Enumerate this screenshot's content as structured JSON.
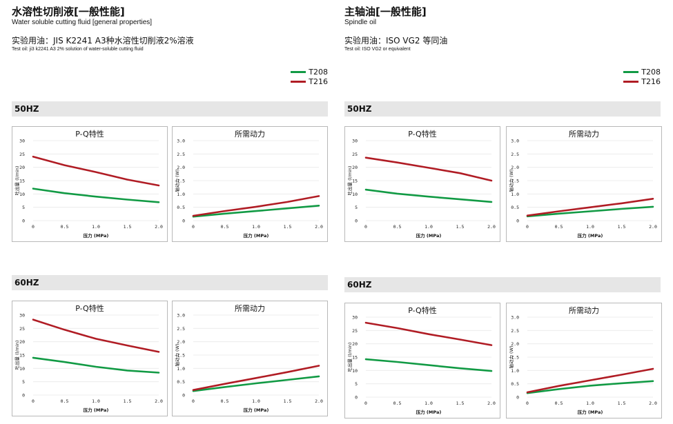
{
  "left": {
    "title": "水溶性切削液[一般性能]",
    "subtitle": "Water soluble cutting fluid [general properties]",
    "oil": "实验用油：JIS K2241 A3种水溶性切削液2%溶液",
    "oil_en": "Test oil:  ji3 k2241 A3 2% solution of water-soluble cutting fluid"
  },
  "right": {
    "title": "主轴油[一般性能]",
    "subtitle": "Spindle oil",
    "oil": "实验用油：ISO VG2 等同油",
    "oil_en": "Test oil: ISO VG2 or equivalent"
  },
  "legend": [
    {
      "name": "T208",
      "color": "#119a44"
    },
    {
      "name": "T216",
      "color": "#b01c24"
    }
  ],
  "bands": {
    "hz50": "50HZ",
    "hz60": "60HZ"
  },
  "chart_data": [
    {
      "id": "left-50-pq",
      "type": "line",
      "title": "P-Q特性",
      "xlabel": "压力 (MPa)",
      "ylabel": "吐出量 (l/min)",
      "x": [
        0,
        0.5,
        1.0,
        1.5,
        2.0
      ],
      "xticks": [
        "0",
        "0.5",
        "1.0",
        "1.5",
        "2.0"
      ],
      "yticks": [
        "0",
        "5",
        "10",
        "15",
        "20",
        "25",
        "30"
      ],
      "ylim": [
        0,
        30
      ],
      "xlim": [
        0,
        2
      ],
      "series": [
        {
          "name": "T208",
          "values": [
            12,
            10.3,
            9,
            7.9,
            6.9
          ]
        },
        {
          "name": "T216",
          "values": [
            24,
            20.8,
            18.2,
            15.4,
            13.2
          ]
        }
      ]
    },
    {
      "id": "left-50-power",
      "type": "line",
      "title": "所需动力",
      "xlabel": "压力 (MPa)",
      "ylabel": "轴动力 (W)",
      "x": [
        0,
        0.5,
        1.0,
        1.5,
        2.0
      ],
      "xticks": [
        "0",
        "0.5",
        "1.0",
        "1.5",
        "2.0"
      ],
      "yticks": [
        "0",
        "0.5",
        "1.0",
        "1.5",
        "2.0",
        "2.5",
        "3.0"
      ],
      "ylim": [
        0,
        3
      ],
      "xlim": [
        0,
        2
      ],
      "series": [
        {
          "name": "T208",
          "values": [
            0.15,
            0.26,
            0.36,
            0.46,
            0.56
          ]
        },
        {
          "name": "T216",
          "values": [
            0.18,
            0.36,
            0.52,
            0.7,
            0.92
          ]
        }
      ]
    },
    {
      "id": "left-60-pq",
      "type": "line",
      "title": "P-Q特性",
      "xlabel": "压力 (MPa)",
      "ylabel": "吐出量 (l/min)",
      "x": [
        0,
        0.5,
        1.0,
        1.5,
        2.0
      ],
      "xticks": [
        "0",
        "0.5",
        "1.0",
        "1.5",
        "2.0"
      ],
      "yticks": [
        "0",
        "5",
        "10",
        "15",
        "20",
        "25",
        "30"
      ],
      "ylim": [
        0,
        30
      ],
      "xlim": [
        0,
        2
      ],
      "series": [
        {
          "name": "T208",
          "values": [
            14,
            12.4,
            10.6,
            9.2,
            8.4
          ]
        },
        {
          "name": "T216",
          "values": [
            28.3,
            24.5,
            21.1,
            18.6,
            16.2
          ]
        }
      ]
    },
    {
      "id": "left-60-power",
      "type": "line",
      "title": "所需动力",
      "xlabel": "压力 (MPa)",
      "ylabel": "轴动力 (W)",
      "x": [
        0,
        0.5,
        1.0,
        1.5,
        2.0
      ],
      "xticks": [
        "0",
        "0.5",
        "1.0",
        "1.5",
        "2.0"
      ],
      "yticks": [
        "0",
        "0.5",
        "1.0",
        "1.5",
        "2.0",
        "2.5",
        "3.0"
      ],
      "ylim": [
        0,
        3
      ],
      "xlim": [
        0,
        2
      ],
      "series": [
        {
          "name": "T208",
          "values": [
            0.15,
            0.3,
            0.44,
            0.57,
            0.7
          ]
        },
        {
          "name": "T216",
          "values": [
            0.19,
            0.42,
            0.64,
            0.86,
            1.1
          ]
        }
      ]
    },
    {
      "id": "right-50-pq",
      "type": "line",
      "title": "P-Q特性",
      "xlabel": "压力 (MPa)",
      "ylabel": "吐出量 (l/min)",
      "x": [
        0,
        0.5,
        1.0,
        1.5,
        2.0
      ],
      "xticks": [
        "0",
        "0.5",
        "1.0",
        "1.5",
        "2.0"
      ],
      "yticks": [
        "0",
        "5",
        "10",
        "15",
        "20",
        "25",
        "30"
      ],
      "ylim": [
        0,
        30
      ],
      "xlim": [
        0,
        2
      ],
      "series": [
        {
          "name": "T208",
          "values": [
            11.6,
            10.1,
            9,
            8,
            7
          ]
        },
        {
          "name": "T216",
          "values": [
            23.6,
            21.8,
            19.8,
            17.8,
            15
          ]
        }
      ]
    },
    {
      "id": "right-50-power",
      "type": "line",
      "title": "所需动力",
      "xlabel": "压力 (MPa)",
      "ylabel": "轴动力 (W)",
      "x": [
        0,
        0.5,
        1.0,
        1.5,
        2.0
      ],
      "xticks": [
        "0",
        "0.5",
        "1.0",
        "1.5",
        "2.0"
      ],
      "yticks": [
        "0",
        "0.5",
        "1.0",
        "1.5",
        "2.0",
        "2.5",
        "3.0"
      ],
      "ylim": [
        0,
        3
      ],
      "xlim": [
        0,
        2
      ],
      "series": [
        {
          "name": "T208",
          "values": [
            0.16,
            0.26,
            0.35,
            0.44,
            0.52
          ]
        },
        {
          "name": "T216",
          "values": [
            0.19,
            0.35,
            0.5,
            0.65,
            0.82
          ]
        }
      ]
    },
    {
      "id": "right-60-pq",
      "type": "line",
      "title": "P-Q特性",
      "xlabel": "压力 (MPa)",
      "ylabel": "吐出量 (l/min)",
      "x": [
        0,
        0.5,
        1.0,
        1.5,
        2.0
      ],
      "xticks": [
        "0",
        "0.5",
        "1.0",
        "1.5",
        "2.0"
      ],
      "yticks": [
        "0",
        "5",
        "10",
        "15",
        "20",
        "25",
        "30"
      ],
      "ylim": [
        0,
        30
      ],
      "xlim": [
        0,
        2
      ],
      "series": [
        {
          "name": "T208",
          "values": [
            14.2,
            13.2,
            12,
            10.8,
            9.8
          ]
        },
        {
          "name": "T216",
          "values": [
            27.9,
            25.9,
            23.6,
            21.6,
            19.5
          ]
        }
      ]
    },
    {
      "id": "right-60-power",
      "type": "line",
      "title": "所需动力",
      "xlabel": "压力 (MPa)",
      "ylabel": "轴动力 (W)",
      "x": [
        0,
        0.5,
        1.0,
        1.5,
        2.0
      ],
      "xticks": [
        "0",
        "0.5",
        "1.0",
        "1.5",
        "2.0"
      ],
      "yticks": [
        "0",
        "0.5",
        "1.0",
        "1.5",
        "2.0",
        "2.5",
        "3.0"
      ],
      "ylim": [
        0,
        3
      ],
      "xlim": [
        0,
        2
      ],
      "series": [
        {
          "name": "T208",
          "values": [
            0.15,
            0.3,
            0.43,
            0.52,
            0.6
          ]
        },
        {
          "name": "T216",
          "values": [
            0.18,
            0.42,
            0.63,
            0.84,
            1.06
          ]
        }
      ]
    }
  ]
}
